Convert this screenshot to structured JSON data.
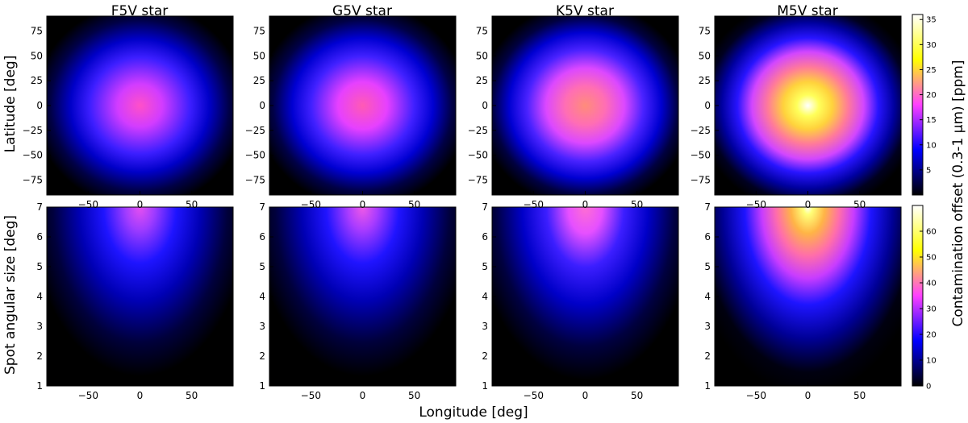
{
  "chart_data": [
    {
      "type": "heatmap",
      "row": 0,
      "col": 0,
      "title": "F5V star",
      "ylabel": "Latitude [deg]",
      "xlim": [
        -90,
        90
      ],
      "ylim": [
        -90,
        90
      ],
      "x_ticks": [
        "−50",
        "0",
        "50"
      ],
      "y_ticks": [
        "75",
        "50",
        "25",
        "0",
        "−25",
        "−50",
        "−75"
      ],
      "peak_value": 18,
      "colorscale_max": 36
    },
    {
      "type": "heatmap",
      "row": 0,
      "col": 1,
      "title": "G5V star",
      "xlim": [
        -90,
        90
      ],
      "ylim": [
        -90,
        90
      ],
      "x_ticks": [
        "−50",
        "0",
        "50"
      ],
      "y_ticks": [
        "75",
        "50",
        "25",
        "0",
        "−25",
        "−50",
        "−75"
      ],
      "peak_value": 20,
      "colorscale_max": 36
    },
    {
      "type": "heatmap",
      "row": 0,
      "col": 2,
      "title": "K5V star",
      "xlim": [
        -90,
        90
      ],
      "ylim": [
        -90,
        90
      ],
      "x_ticks": [
        "−50",
        "0",
        "50"
      ],
      "y_ticks": [
        "75",
        "50",
        "25",
        "0",
        "−25",
        "−50",
        "−75"
      ],
      "peak_value": 24,
      "colorscale_max": 36
    },
    {
      "type": "heatmap",
      "row": 0,
      "col": 3,
      "title": "M5V star",
      "xlim": [
        -90,
        90
      ],
      "ylim": [
        -90,
        90
      ],
      "x_ticks": [
        "−50",
        "0",
        "50"
      ],
      "y_ticks": [
        "75",
        "50",
        "25",
        "0",
        "−25",
        "−50",
        "−75"
      ],
      "peak_value": 36,
      "colorscale_max": 36
    },
    {
      "type": "heatmap",
      "row": 1,
      "col": 0,
      "ylabel": "Spot angular size [deg]",
      "xlim": [
        -90,
        90
      ],
      "ylim": [
        1,
        7
      ],
      "x_ticks": [
        "−50",
        "0",
        "50"
      ],
      "y_ticks": [
        "7",
        "6",
        "5",
        "4",
        "3",
        "2",
        "1"
      ],
      "peak_value": 32,
      "colorscale_max": 70
    },
    {
      "type": "heatmap",
      "row": 1,
      "col": 1,
      "xlim": [
        -90,
        90
      ],
      "ylim": [
        1,
        7
      ],
      "x_ticks": [
        "−50",
        "0",
        "50"
      ],
      "y_ticks": [
        "7",
        "6",
        "5",
        "4",
        "3",
        "2",
        "1"
      ],
      "peak_value": 34,
      "colorscale_max": 70
    },
    {
      "type": "heatmap",
      "row": 1,
      "col": 2,
      "xlabel": "Longitude [deg]",
      "xlim": [
        -90,
        90
      ],
      "ylim": [
        1,
        7
      ],
      "x_ticks": [
        "−50",
        "0",
        "50"
      ],
      "y_ticks": [
        "7",
        "6",
        "5",
        "4",
        "3",
        "2",
        "1"
      ],
      "peak_value": 42,
      "colorscale_max": 70
    },
    {
      "type": "heatmap",
      "row": 1,
      "col": 3,
      "xlim": [
        -90,
        90
      ],
      "ylim": [
        1,
        7
      ],
      "x_ticks": [
        "−50",
        "0",
        "50"
      ],
      "y_ticks": [
        "7",
        "6",
        "5",
        "4",
        "3",
        "2",
        "1"
      ],
      "peak_value": 70,
      "colorscale_max": 70
    }
  ],
  "colorbars": [
    {
      "row": 0,
      "min": 0,
      "max": 36,
      "ticks": [
        "35",
        "30",
        "25",
        "20",
        "15",
        "10",
        "5"
      ]
    },
    {
      "row": 1,
      "min": 0,
      "max": 70,
      "ticks": [
        "60",
        "50",
        "40",
        "30",
        "20",
        "10",
        "0"
      ]
    }
  ],
  "colorbar_label": "Contamination offset (0.3-1 μm) [ppm]",
  "colormap": [
    "#000000",
    "#0000ff",
    "#ff40ff",
    "#ffff00",
    "#ffffff"
  ]
}
